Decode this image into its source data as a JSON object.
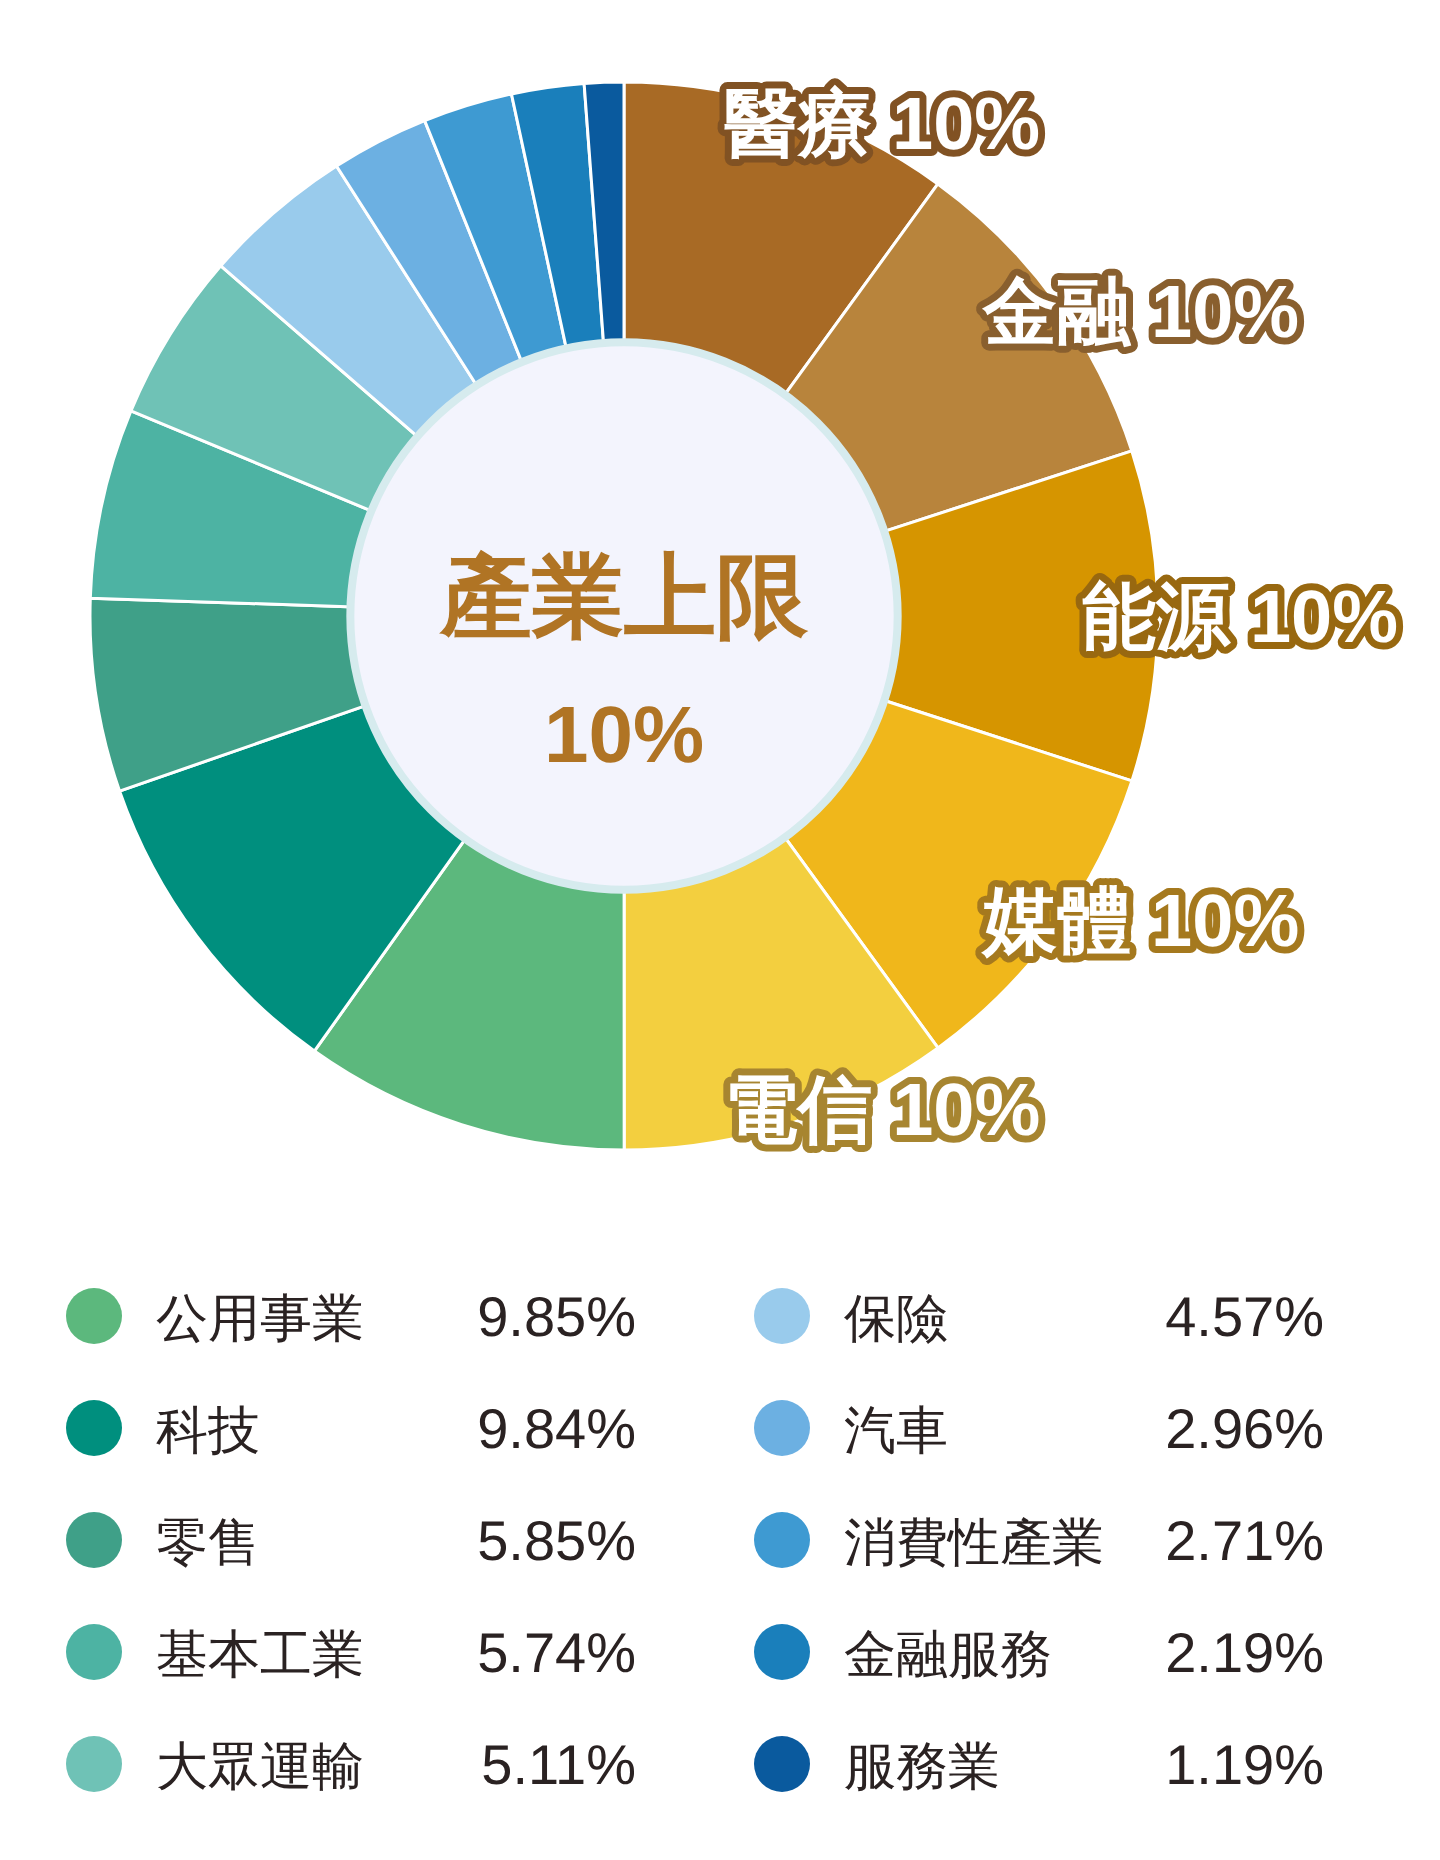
{
  "chart_data": {
    "type": "donut",
    "title": "產業上限",
    "subtitle": "10%",
    "categories": [
      "醫療",
      "金融",
      "能源",
      "媒體",
      "電信",
      "公用事業",
      "科技",
      "零售",
      "基本工業",
      "大眾運輸",
      "保險",
      "汽車",
      "消費性產業",
      "金融服務",
      "服務業"
    ],
    "values": [
      10,
      10,
      10,
      10,
      10,
      9.85,
      9.84,
      5.85,
      5.74,
      5.11,
      4.57,
      2.96,
      2.71,
      2.19,
      1.19
    ],
    "value_labels": [
      "10%",
      "10%",
      "10%",
      "10%",
      "10%",
      "9.85%",
      "9.84%",
      "5.85%",
      "5.74%",
      "5.11%",
      "4.57%",
      "2.96%",
      "2.71%",
      "2.19%",
      "1.19%"
    ],
    "colors": [
      "#a86a25",
      "#b8843c",
      "#d69500",
      "#f0b71b",
      "#f3cf3f",
      "#5cb87d",
      "#008f7e",
      "#3fa088",
      "#4db3a3",
      "#6fc2b6",
      "#99cbec",
      "#6cb0e2",
      "#3e9ad2",
      "#1a7fbb",
      "#0a5a9e"
    ],
    "legend": "bottom"
  }
}
